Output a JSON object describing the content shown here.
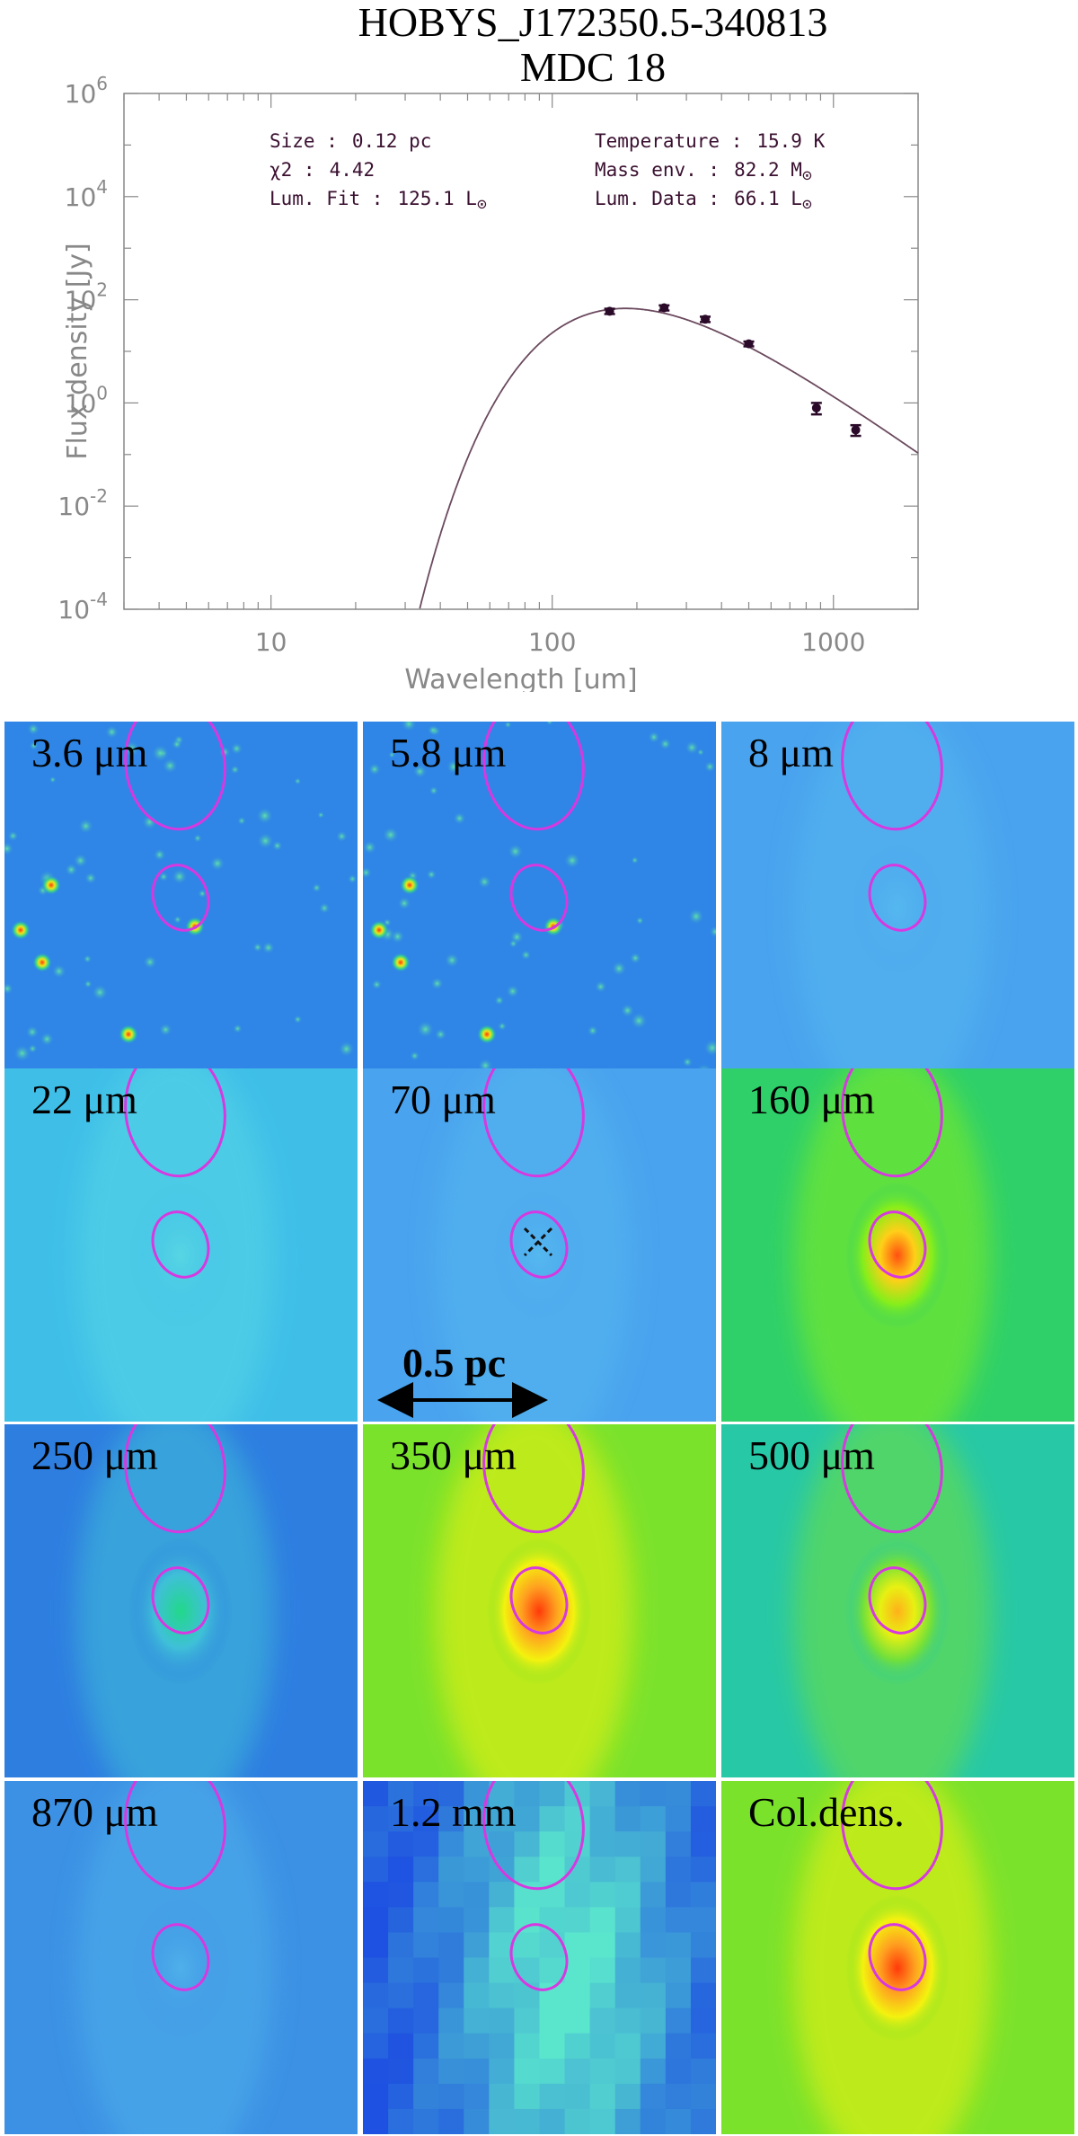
{
  "title_line1": "HOBYS_J172350.5-340813",
  "title_line2": "MDC 18",
  "chart_data": {
    "type": "scatter",
    "title": "HOBYS_J172350.5-340813 MDC 18",
    "xlabel": "Wavelength [um]",
    "ylabel": "Flux density [Jy]",
    "xscale": "log",
    "yscale": "log",
    "xlim": [
      3,
      2000
    ],
    "ylim": [
      0.0001,
      1000000
    ],
    "x_ticks": [
      "10",
      "100",
      "1000"
    ],
    "y_ticks": [
      {
        "base": "10",
        "exp": "6"
      },
      {
        "base": "10",
        "exp": "4"
      },
      {
        "base": "10",
        "exp": "2"
      },
      {
        "base": "10",
        "exp": "0"
      },
      {
        "base": "10",
        "exp": "-2"
      },
      {
        "base": "10",
        "exp": "-4"
      }
    ],
    "points": [
      {
        "x": 160,
        "y": 60,
        "err_low": 53,
        "err_high": 67
      },
      {
        "x": 250,
        "y": 70,
        "err_low": 62,
        "err_high": 78
      },
      {
        "x": 350,
        "y": 42,
        "err_low": 37,
        "err_high": 47
      },
      {
        "x": 500,
        "y": 14,
        "err_low": 12.5,
        "err_high": 15.5
      },
      {
        "x": 870,
        "y": 0.8,
        "err_low": 0.6,
        "err_high": 1.0
      },
      {
        "x": 1200,
        "y": 0.3,
        "err_low": 0.23,
        "err_high": 0.37
      }
    ],
    "model": {
      "type": "modified-blackbody",
      "temperature_K": 15.9,
      "peak_flux_Jy": 68,
      "peak_wavelength_um": 190
    },
    "annotations": {
      "size": {
        "label": "Size :",
        "value": "0.12 pc"
      },
      "chi2": {
        "label": "χ2 :",
        "value": "4.42"
      },
      "lum_fit": {
        "label": "Lum. Fit :",
        "value": "125.1 L",
        "unit_symbol": "⊙"
      },
      "temperature": {
        "label": "Temperature :",
        "value": "15.9 K"
      },
      "mass_env": {
        "label": "Mass env. :",
        "value": "82.2 M",
        "unit_symbol": "⊙"
      },
      "lum_data": {
        "label": "Lum. Data :",
        "value": "66.1 L",
        "unit_symbol": "⊙"
      }
    },
    "grid": false,
    "legend": "none"
  },
  "panels": [
    {
      "label": "3.6 μm",
      "colormap": "stars-blue"
    },
    {
      "label": "5.8 μm",
      "colormap": "stars-blue"
    },
    {
      "label": "8 μm",
      "colormap": "diffuse-light-blue"
    },
    {
      "label": "22 μm",
      "colormap": "diffuse-cyan"
    },
    {
      "label": "70 μm",
      "colormap": "diffuse-light-blue"
    },
    {
      "label": "160 μm",
      "colormap": "green-peak"
    },
    {
      "label": "250 μm",
      "colormap": "blue-green-peak"
    },
    {
      "label": "350 μm",
      "colormap": "green-red-peak"
    },
    {
      "label": "500 μm",
      "colormap": "green-yellow-peak"
    },
    {
      "label": "870 μm",
      "colormap": "blue-pixelated"
    },
    {
      "label": "1.2 mm",
      "colormap": "blue-coarse"
    },
    {
      "label": "Col.dens.",
      "colormap": "green-red-peak"
    }
  ],
  "scale_bar": {
    "label": "0.5 pc"
  },
  "colors": {
    "curve": "#6b4a5e",
    "points": "#2a0a28",
    "ellipse": "#d838e0",
    "axis": "#888888",
    "text": "#3a1030"
  }
}
